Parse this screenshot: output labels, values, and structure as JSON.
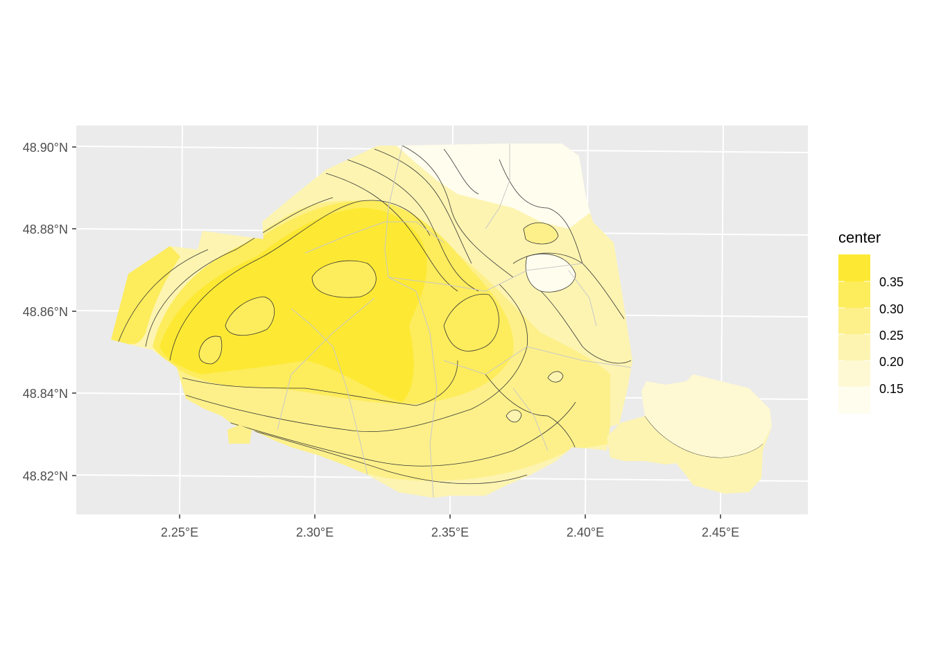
{
  "map": {
    "legend": {
      "title": "center",
      "labels": [
        "0.35",
        "0.30",
        "0.25",
        "0.20",
        "0.15"
      ],
      "colors": [
        "#fde933",
        "#fdec5c",
        "#fdf08a",
        "#fdf4b1",
        "#fef9d3",
        "#fffdee"
      ]
    },
    "axes": {
      "x_ticks": [
        "2.25°E",
        "2.30°E",
        "2.35°E",
        "2.40°E",
        "2.45°E"
      ],
      "y_ticks": [
        "48.90°N",
        "48.88°N",
        "48.86°N",
        "48.84°N",
        "48.82°N"
      ]
    },
    "colors": {
      "panel": "#ebebeb",
      "grid": "#ffffff",
      "contour": "#333333",
      "district_border": "#c8c8c8"
    }
  }
}
